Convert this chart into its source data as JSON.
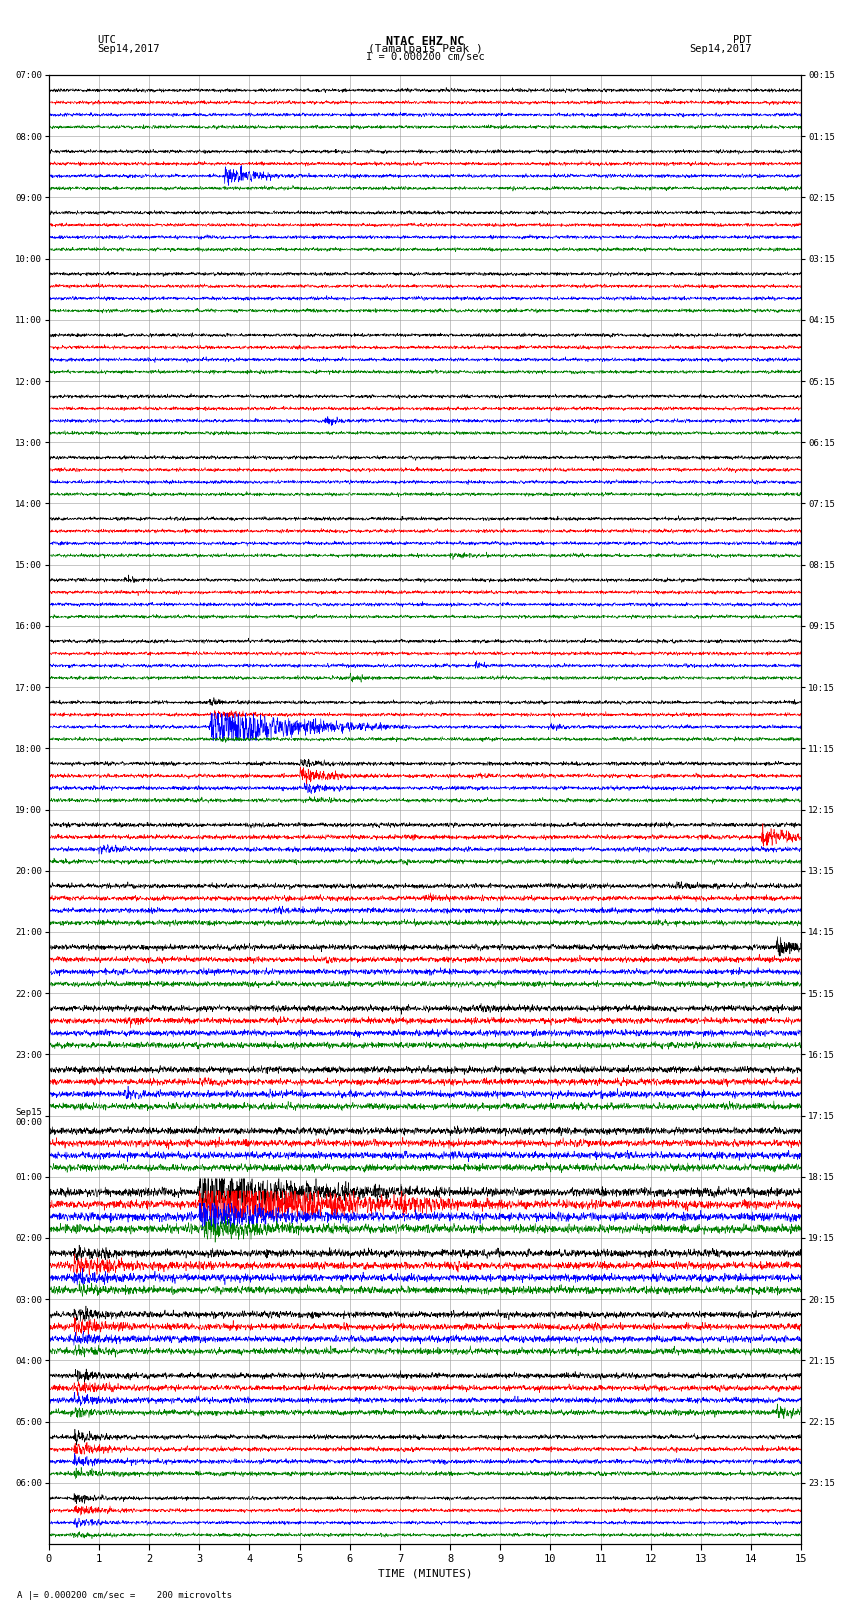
{
  "title_line1": "NTAC EHZ NC",
  "title_line2": "(Tamalpais Peak )",
  "scale_label": "I = 0.000200 cm/sec",
  "xlabel": "TIME (MINUTES)",
  "left_label_line1": "UTC",
  "left_label_line2": "Sep14,2017",
  "right_label_line1": "PDT",
  "right_label_line2": "Sep14,2017",
  "utc_labels": [
    "07:00",
    "08:00",
    "09:00",
    "10:00",
    "11:00",
    "12:00",
    "13:00",
    "14:00",
    "15:00",
    "16:00",
    "17:00",
    "18:00",
    "19:00",
    "20:00",
    "21:00",
    "22:00",
    "23:00",
    "Sep15\n00:00",
    "01:00",
    "02:00",
    "03:00",
    "04:00",
    "05:00",
    "06:00"
  ],
  "pdt_labels": [
    "00:15",
    "01:15",
    "02:15",
    "03:15",
    "04:15",
    "05:15",
    "06:15",
    "07:15",
    "08:15",
    "09:15",
    "10:15",
    "11:15",
    "12:15",
    "13:15",
    "14:15",
    "15:15",
    "16:15",
    "17:15",
    "18:15",
    "19:15",
    "20:15",
    "21:15",
    "22:15",
    "23:15"
  ],
  "trace_colors": [
    "black",
    "red",
    "blue",
    "green"
  ],
  "n_rows": 24,
  "traces_per_row": 4,
  "xmin": 0,
  "xmax": 15,
  "bg_color": "white",
  "grid_color": "#999999",
  "base_noise_amp": 0.012,
  "bottom_annotation": "A |= 0.000200 cm/sec =    200 microvolts"
}
